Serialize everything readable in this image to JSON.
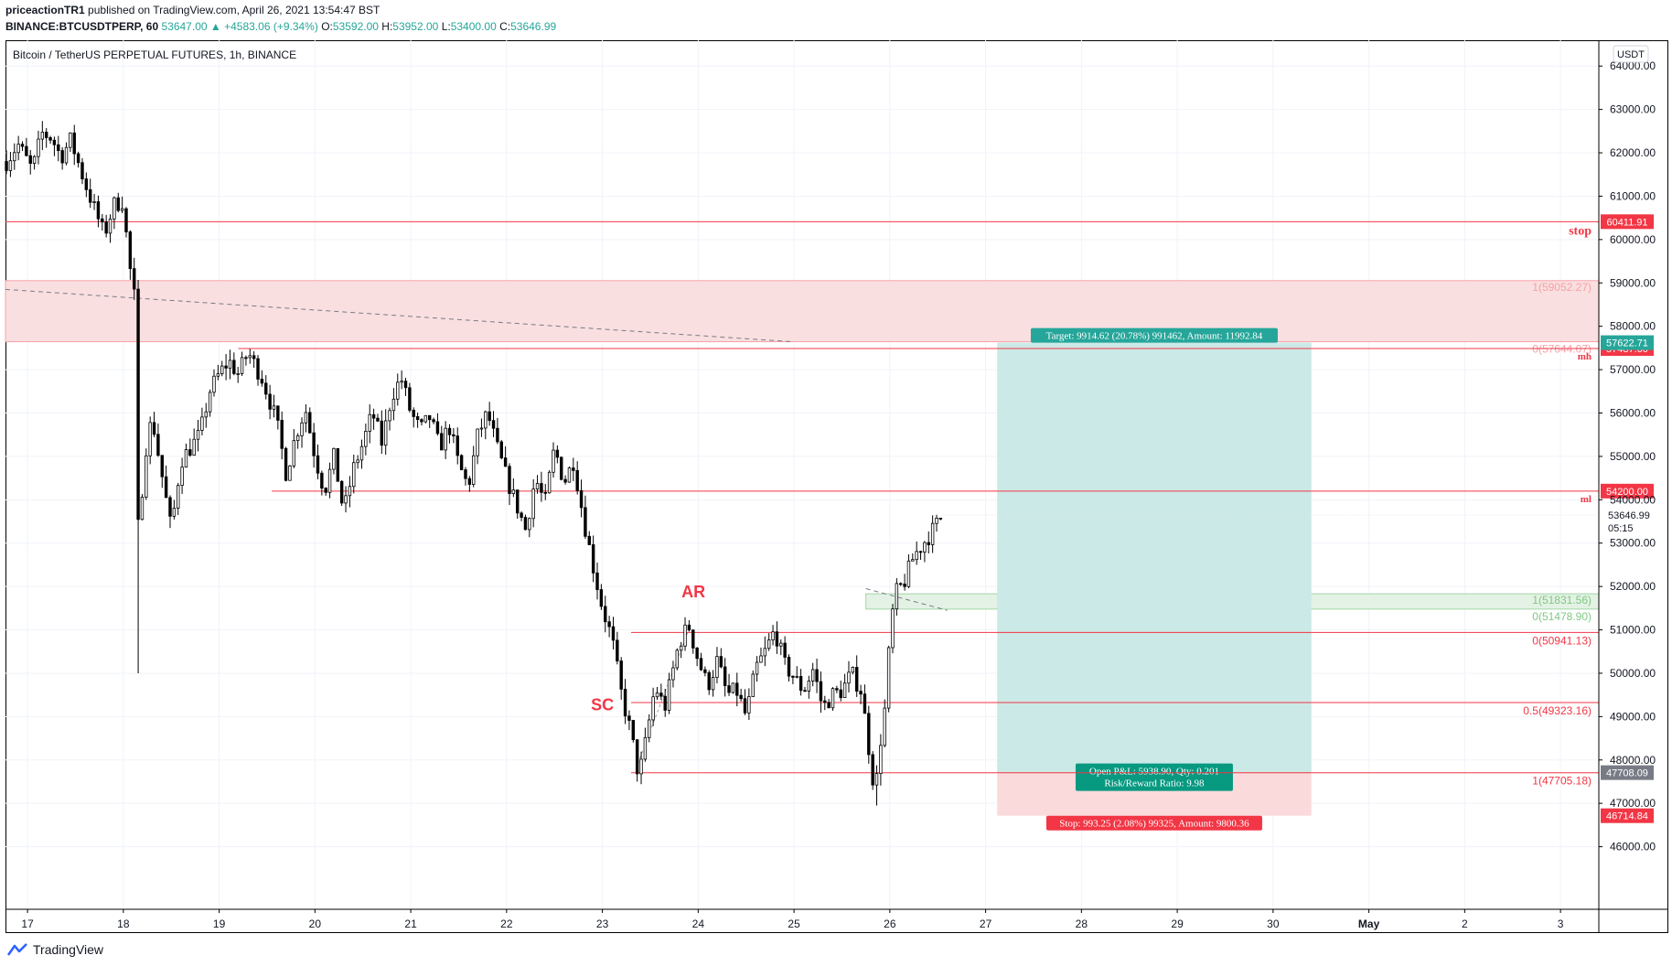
{
  "header": {
    "author": "priceactionTR1",
    "published": "published on TradingView.com, April 26, 2021 13:54:47 BST",
    "symbol": "BINANCE:BTCUSDTPERP, 60",
    "last": "53647.00",
    "change": "▲ +4583.06 (+9.34%)",
    "o_label": "O:",
    "o": "53592.00",
    "h_label": "H:",
    "h": "53952.00",
    "l_label": "L:",
    "l": "53400.00",
    "c_label": "C:",
    "c": "53646.99"
  },
  "chart_title": "Bitcoin / TetherUS PERPETUAL FUTURES, 1h, BINANCE",
  "currency": "USDT",
  "footer": {
    "brand": "TradingView",
    "icon": "tradingview-logo-icon"
  },
  "colors": {
    "up": "#ffffff",
    "down": "#000000",
    "wick": "#000000",
    "red": "#f23645",
    "teal": "#26a69a",
    "green": "#81c784",
    "target_zone": "#cbe9e6",
    "stop_zone": "#fbdadc",
    "pink_zone": "#f9dfe0"
  },
  "chart_data": {
    "type": "candlestick",
    "title": "Bitcoin / TetherUS PERPETUAL FUTURES, 1h, BINANCE",
    "timeframe": "1h",
    "ylim": [
      45000,
      64300
    ],
    "y_ticks": [
      "64000.00",
      "63000.00",
      "62000.00",
      "61000.00",
      "60000.00",
      "59000.00",
      "58000.00",
      "57000.00",
      "56000.00",
      "55000.00",
      "54000.00",
      "53000.00",
      "52000.00",
      "51000.00",
      "50000.00",
      "49000.00",
      "48000.00",
      "47000.00",
      "46000.00"
    ],
    "x_ticks": [
      "17",
      "18",
      "19",
      "20",
      "21",
      "22",
      "23",
      "24",
      "25",
      "26",
      "27",
      "28",
      "29",
      "30",
      "May",
      "2",
      "3"
    ],
    "x_tick_days": [
      17,
      18,
      19,
      20,
      21,
      22,
      23,
      24,
      25,
      26,
      27,
      28,
      29,
      30,
      31,
      32,
      33
    ],
    "xlim_days": [
      16.77,
      33.4
    ],
    "price_path": [
      [
        16.78,
        61800
      ],
      [
        16.9,
        62200
      ],
      [
        17.05,
        61600
      ],
      [
        17.15,
        62450
      ],
      [
        17.25,
        62350
      ],
      [
        17.35,
        61900
      ],
      [
        17.45,
        62300
      ],
      [
        17.6,
        61300
      ],
      [
        17.7,
        60700
      ],
      [
        17.8,
        60100
      ],
      [
        17.9,
        60800
      ],
      [
        18.0,
        60900
      ],
      [
        18.05,
        59600
      ],
      [
        18.12,
        58600
      ],
      [
        18.15,
        54500
      ],
      [
        18.17,
        50000
      ],
      [
        18.2,
        54800
      ],
      [
        18.3,
        55900
      ],
      [
        18.4,
        54600
      ],
      [
        18.5,
        53300
      ],
      [
        18.6,
        54900
      ],
      [
        18.7,
        55200
      ],
      [
        18.8,
        55500
      ],
      [
        18.9,
        56500
      ],
      [
        19.0,
        56900
      ],
      [
        19.1,
        57200
      ],
      [
        19.2,
        56900
      ],
      [
        19.3,
        57400
      ],
      [
        19.45,
        56800
      ],
      [
        19.6,
        55800
      ],
      [
        19.7,
        54600
      ],
      [
        19.8,
        55500
      ],
      [
        19.9,
        56100
      ],
      [
        20.0,
        55000
      ],
      [
        20.1,
        54200
      ],
      [
        20.2,
        55000
      ],
      [
        20.3,
        53700
      ],
      [
        20.4,
        54700
      ],
      [
        20.5,
        55300
      ],
      [
        20.6,
        56000
      ],
      [
        20.7,
        55300
      ],
      [
        20.8,
        56400
      ],
      [
        20.9,
        56800
      ],
      [
        21.0,
        56000
      ],
      [
        21.1,
        55600
      ],
      [
        21.2,
        55900
      ],
      [
        21.3,
        55200
      ],
      [
        21.4,
        55700
      ],
      [
        21.5,
        54800
      ],
      [
        21.6,
        54300
      ],
      [
        21.7,
        55500
      ],
      [
        21.8,
        56000
      ],
      [
        21.9,
        55200
      ],
      [
        22.0,
        54500
      ],
      [
        22.1,
        53900
      ],
      [
        22.2,
        53300
      ],
      [
        22.3,
        54500
      ],
      [
        22.4,
        53900
      ],
      [
        22.5,
        55200
      ],
      [
        22.6,
        54400
      ],
      [
        22.7,
        54900
      ],
      [
        22.8,
        53600
      ],
      [
        22.9,
        52500
      ],
      [
        23.0,
        51500
      ],
      [
        23.1,
        50800
      ],
      [
        23.2,
        49500
      ],
      [
        23.3,
        48600
      ],
      [
        23.38,
        47600
      ],
      [
        23.45,
        48400
      ],
      [
        23.55,
        49700
      ],
      [
        23.65,
        49200
      ],
      [
        23.8,
        50700
      ],
      [
        23.9,
        51100
      ],
      [
        24.0,
        50300
      ],
      [
        24.1,
        49700
      ],
      [
        24.2,
        50300
      ],
      [
        24.3,
        49500
      ],
      [
        24.4,
        49600
      ],
      [
        24.5,
        49000
      ],
      [
        24.6,
        50100
      ],
      [
        24.7,
        50500
      ],
      [
        24.8,
        51000
      ],
      [
        24.9,
        50200
      ],
      [
        25.0,
        49900
      ],
      [
        25.1,
        49600
      ],
      [
        25.2,
        50100
      ],
      [
        25.3,
        49200
      ],
      [
        25.4,
        49500
      ],
      [
        25.5,
        49600
      ],
      [
        25.6,
        50000
      ],
      [
        25.7,
        49600
      ],
      [
        25.75,
        48800
      ],
      [
        25.82,
        47600
      ],
      [
        25.86,
        47500
      ],
      [
        25.9,
        48400
      ],
      [
        25.95,
        49200
      ],
      [
        26.0,
        50800
      ],
      [
        26.05,
        51800
      ],
      [
        26.15,
        52100
      ],
      [
        26.25,
        52700
      ],
      [
        26.35,
        53000
      ],
      [
        26.45,
        53300
      ],
      [
        26.55,
        53647
      ]
    ],
    "horizontal_lines": [
      {
        "price": 60411.91,
        "label": "60411.91",
        "side_label": "stop",
        "color": "#f23645"
      },
      {
        "price": 57487.0,
        "label": "57487.00",
        "side_label": "mh",
        "color": "#f23645",
        "start_day": 19.2
      },
      {
        "price": 54200.0,
        "label": "54200.00",
        "side_label": "ml",
        "color": "#f23645",
        "start_day": 19.55
      }
    ],
    "zones": [
      {
        "top": 59052.27,
        "bottom": 57644.07,
        "color": "#f9dfe0",
        "labels": [
          "1(59052.27)",
          "0(57644.07)"
        ]
      },
      {
        "top": 51831.56,
        "bottom": 51478.9,
        "color": "#e3f2e4",
        "labels": [
          "1(51831.56)",
          "0(51478.90)"
        ],
        "start_day": 25.75
      }
    ],
    "fib_levels": [
      {
        "price": 50941.13,
        "label": "0(50941.13)"
      },
      {
        "price": 49323.16,
        "label": "0.5(49323.16)"
      },
      {
        "price": 47705.18,
        "label": "1(47705.18)"
      }
    ],
    "fib_start_day": 23.3,
    "annotations": [
      {
        "text": "AR",
        "day": 23.95,
        "price": 51750
      },
      {
        "text": "SC",
        "day": 23.0,
        "price": 49150
      }
    ],
    "position": {
      "type": "long",
      "entry": 47708.09,
      "target": 57622.71,
      "stop": 46714.84,
      "start_day": 27.12,
      "end_day": 30.4,
      "target_label": "Target: 9914.62 (20.78%) 991462, Amount: 11992.84",
      "pnl_label": "Open P&L: 5938.90, Qty: 0.201",
      "rr_label": "Risk/Reward Ratio: 9.98",
      "stop_label": "Stop: 993.25 (2.08%) 99325, Amount: 9800.36"
    },
    "price_badges": [
      {
        "price": 57622.71,
        "label": "57622.71",
        "color": "#26a69a"
      },
      {
        "price": 47708.09,
        "label": "47708.09",
        "color": "#787b86"
      },
      {
        "price": 46714.84,
        "label": "46714.84",
        "color": "#f23645"
      }
    ],
    "last_price": {
      "value": 53646.99,
      "label": "53646.99",
      "countdown": "05:15"
    },
    "dashed_trendline": [
      [
        16.77,
        58850
      ],
      [
        25.0,
        57640
      ]
    ]
  }
}
